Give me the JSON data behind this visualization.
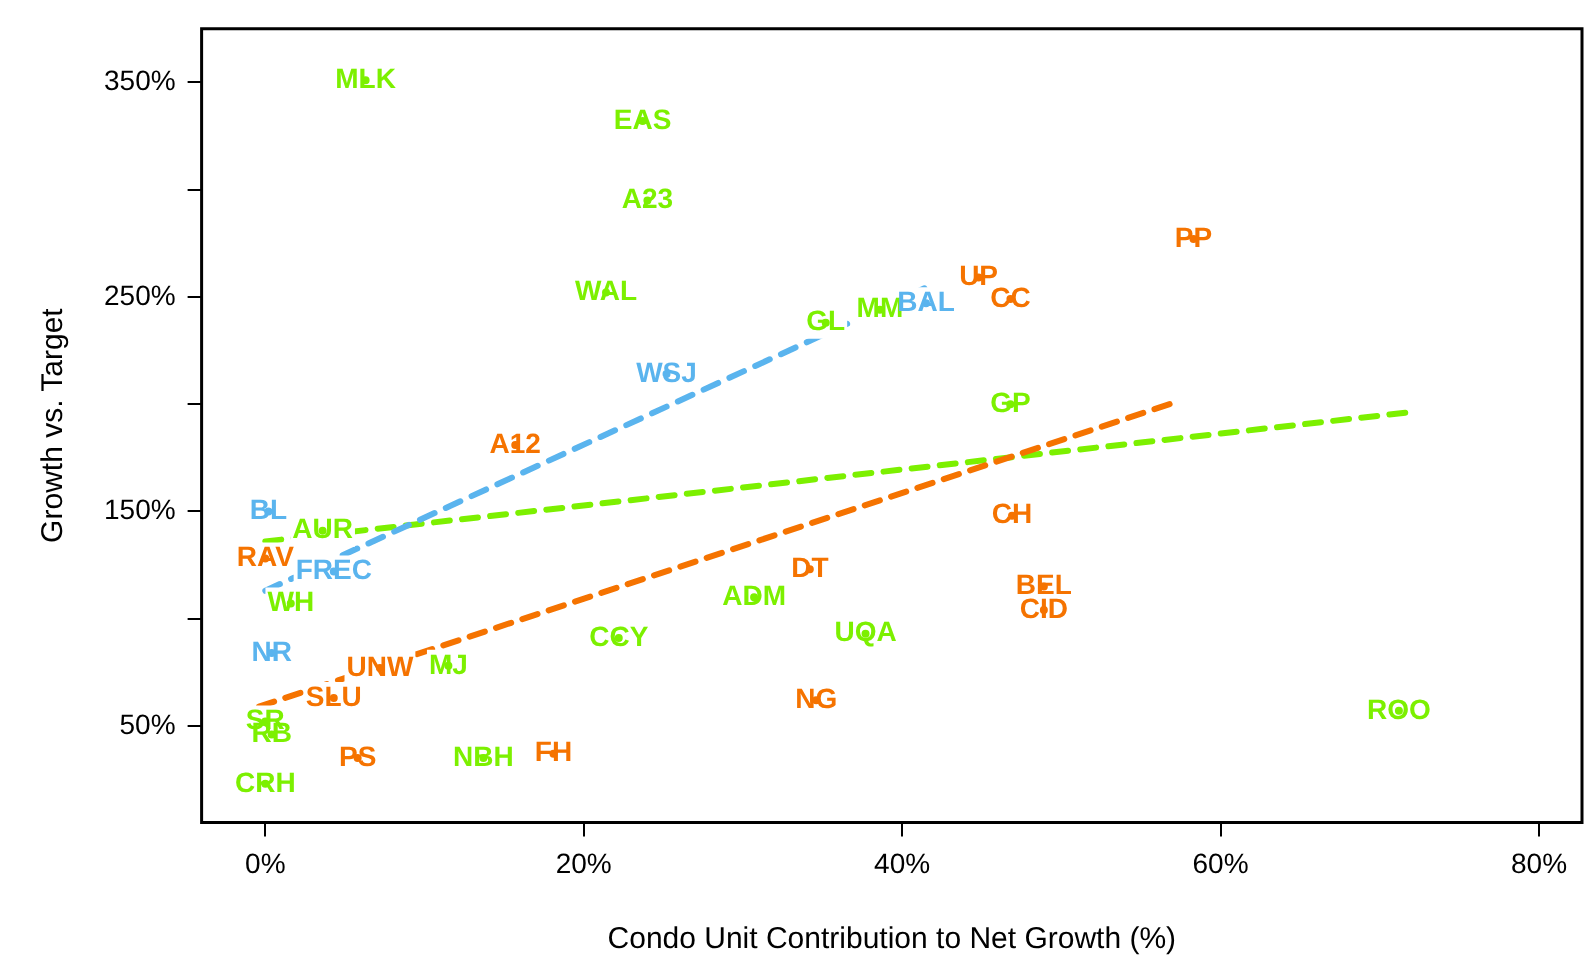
{
  "chart_data": {
    "type": "scatter",
    "xlabel": "Condo Unit Contribution to Net Growth (%)",
    "ylabel": "Growth vs. Target",
    "xlim": [
      -4,
      82.7
    ],
    "ylim": [
      5,
      375
    ],
    "xticks": [
      {
        "value": 0,
        "label": "0%"
      },
      {
        "value": 20,
        "label": "20%"
      },
      {
        "value": 40,
        "label": "40%"
      },
      {
        "value": 60,
        "label": "60%"
      },
      {
        "value": 80,
        "label": "80%"
      }
    ],
    "yticks": [
      {
        "value": 50,
        "label": "50%"
      },
      {
        "value": 100,
        "label": null
      },
      {
        "value": 150,
        "label": "150%"
      },
      {
        "value": 200,
        "label": null
      },
      {
        "value": 250,
        "label": "250%"
      },
      {
        "value": 300,
        "label": null
      },
      {
        "value": 350,
        "label": "350%"
      }
    ],
    "grid": false,
    "legend": false,
    "series": [
      {
        "type": "scatter",
        "color": "#7cf000",
        "x": [
          6.3,
          23.7,
          24.0,
          21.4,
          35.2,
          38.6,
          46.8,
          3.6,
          1.6,
          30.7,
          22.2,
          37.7,
          11.5,
          0,
          0.4,
          0,
          13.7,
          71.2
        ],
        "values": [
          351,
          332,
          295,
          252,
          238,
          244,
          200,
          141,
          107,
          110,
          91,
          93,
          78,
          52,
          46,
          23,
          35,
          57
        ],
        "value_labels": [
          "MLK",
          "EAS",
          "A23",
          "WAL",
          "GL",
          "MM",
          "GP",
          "AUR",
          "WH",
          "ADM",
          "CCY",
          "UQA",
          "MJ",
          "SR",
          "RB",
          "CRH",
          "NBH",
          "ROO"
        ]
      },
      {
        "type": "scatter",
        "color": "#f57300",
        "x": [
          58.3,
          44.8,
          46.8,
          15.7,
          46.9,
          0,
          34.2,
          48.9,
          48.9,
          7.2,
          4.3,
          34.6,
          5.8,
          18.1
        ],
        "values": [
          277,
          259,
          249,
          181,
          148,
          128,
          123,
          115,
          104,
          77,
          63,
          62,
          35,
          37
        ],
        "value_labels": [
          "PP",
          "UP",
          "CC",
          "A12",
          "CH",
          "RAV",
          "DT",
          "BEL",
          "CID",
          "UNW",
          "SLU",
          "NG",
          "PS",
          "FH"
        ]
      },
      {
        "type": "scatter",
        "color": "#5ab4ee",
        "x": [
          41.5,
          25.2,
          0.2,
          4.3,
          0.4
        ],
        "values": [
          247,
          214,
          150,
          122,
          84
        ],
        "value_labels": [
          "BAL",
          "WSJ",
          "BL",
          "FREC",
          "NR"
        ]
      },
      {
        "type": "line",
        "color": "#5ab4ee",
        "line_style": "dashed",
        "x": [
          0,
          41.4
        ],
        "values": [
          113,
          254
        ]
      },
      {
        "type": "line",
        "color": "#f57300",
        "line_style": "dashed",
        "x": [
          -0.4,
          56.8
        ],
        "values": [
          59,
          200
        ]
      },
      {
        "type": "line",
        "color": "#7cf000",
        "line_style": "dashed",
        "x": [
          0,
          71.6
        ],
        "values": [
          136,
          196
        ]
      }
    ]
  }
}
